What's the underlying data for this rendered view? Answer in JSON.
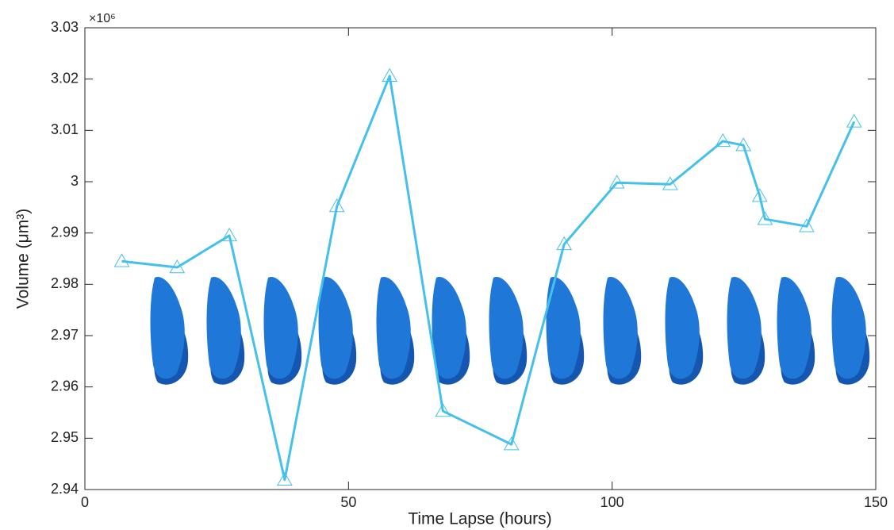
{
  "chart_data": {
    "type": "line",
    "x_label": "Time Lapse (hours)",
    "y_label": "Volume (μm³)",
    "y_multiplier": "×10⁶",
    "x": [
      7,
      17.5,
      27.4,
      37.9,
      47.8,
      57.8,
      67.9,
      80.9,
      90.9,
      100.9,
      111,
      121,
      124.9,
      128,
      129,
      136.9,
      145.9
    ],
    "values": [
      2.9845,
      2.9833,
      2.9895,
      2.9419,
      2.9952,
      3.0206,
      2.9553,
      2.9488,
      2.9878,
      2.9998,
      2.9995,
      3.0079,
      3.0071,
      2.9972,
      2.9927,
      2.9913,
      3.0117
    ],
    "color": "#44c0ec",
    "marker": "triangle",
    "xlim": [
      0,
      150
    ],
    "xticks": [
      0,
      50,
      100,
      150
    ],
    "ylim": [
      2.94,
      3.03
    ],
    "yticks": [
      2.94,
      2.95,
      2.96,
      2.97,
      2.98,
      2.99,
      3,
      3.01,
      3.02,
      3.03
    ],
    "grid": false
  }
}
